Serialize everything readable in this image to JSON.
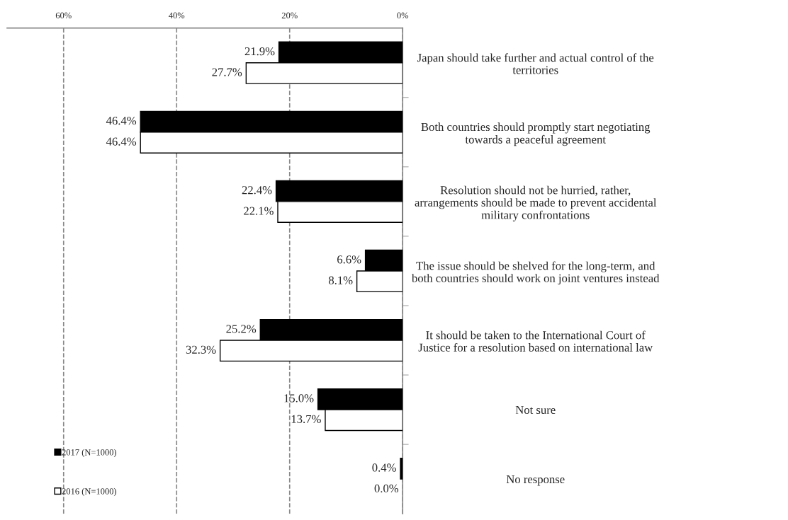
{
  "chart_data": {
    "type": "bar",
    "orientation": "horizontal",
    "categories": [
      "Japan should take further and actual control of the\nterritories",
      "Both countries should promptly start negotiating\ntowards a peaceful agreement",
      "Resolution should not be hurried, rather,\narrangements should be made to prevent accidental\nmilitary confrontations",
      "The issue should be shelved for the long-term, and\nboth countries should work on joint ventures instead",
      "It should be taken to the International Court of\nJustice for a resolution based on international law",
      "Not sure",
      "No response"
    ],
    "series": [
      {
        "name": "2017 (N=1000)",
        "color": "#000000",
        "values": [
          21.9,
          46.4,
          22.4,
          6.6,
          25.2,
          15.0,
          0.4
        ],
        "value_labels": [
          "21.9%",
          "46.4%",
          "22.4%",
          "6.6%",
          "25.2%",
          "15.0%",
          "0.4%"
        ]
      },
      {
        "name": "2016 (N=1000)",
        "color": "#ffffff",
        "values": [
          27.7,
          46.4,
          22.1,
          8.1,
          32.3,
          13.7,
          0.0
        ],
        "value_labels": [
          "27.7%",
          "46.4%",
          "22.1%",
          "8.1%",
          "32.3%",
          "13.7%",
          "0.0%"
        ]
      }
    ],
    "xlim": [
      70,
      0
    ],
    "xticks": [
      {
        "value": 60,
        "label": "60%"
      },
      {
        "value": 40,
        "label": "40%"
      },
      {
        "value": 20,
        "label": "20%"
      },
      {
        "value": 0,
        "label": "0%"
      }
    ],
    "grid": "x",
    "legend": "bottom left"
  }
}
